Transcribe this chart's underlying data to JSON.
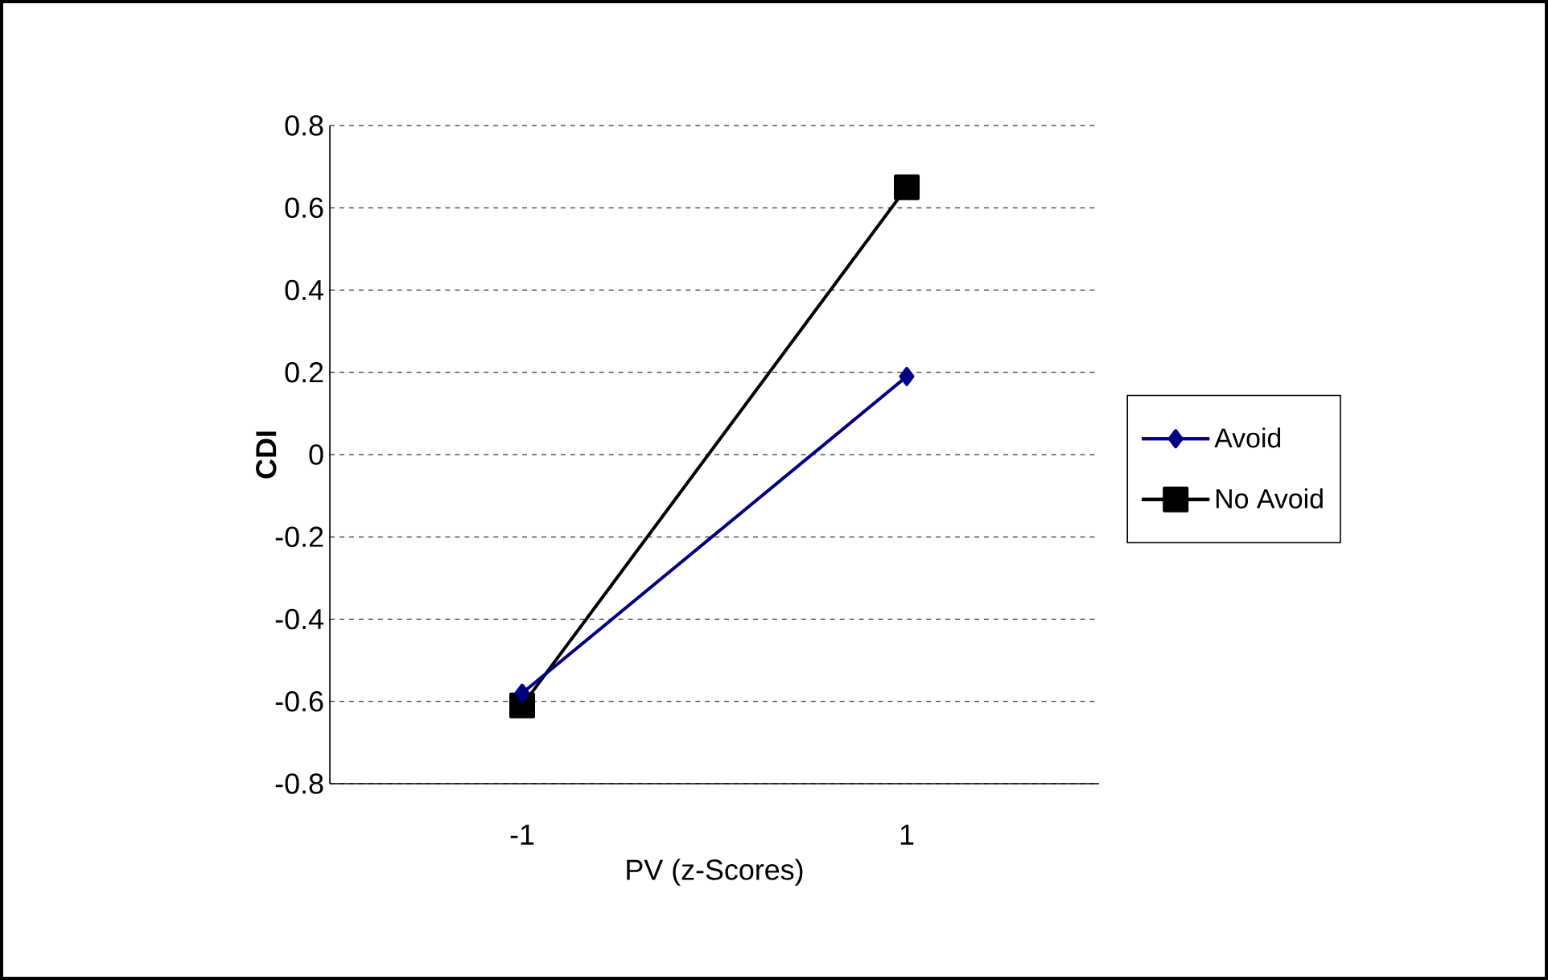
{
  "chart_data": {
    "type": "line",
    "xlabel": "PV (z-Scores)",
    "ylabel": "CDI",
    "categories": [
      "-1",
      "1"
    ],
    "series": [
      {
        "name": "Avoid",
        "color": "#000080",
        "marker": "diamond",
        "values": [
          -0.58,
          0.19
        ]
      },
      {
        "name": "No Avoid",
        "color": "#000000",
        "marker": "square",
        "values": [
          -0.61,
          0.65
        ]
      }
    ],
    "ylim": [
      -0.8,
      0.8
    ],
    "yticks": [
      -0.8,
      -0.6,
      -0.4,
      -0.2,
      0,
      0.2,
      0.4,
      0.6,
      0.8
    ],
    "grid": "y",
    "legend": "right",
    "line_style": "solid"
  }
}
